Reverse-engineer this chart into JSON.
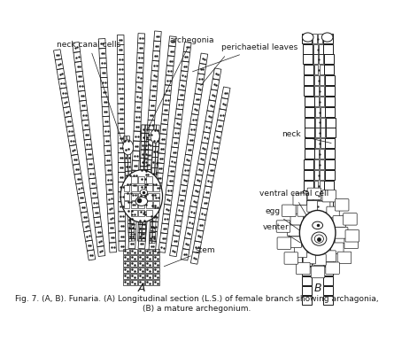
{
  "fig_caption_line1": "Fig. 7. (A, B). Funaria. (A) Longitudinal section (L.S.) of female branch showing archagonia,",
  "fig_caption_line2": "(B) a mature archegonium.",
  "label_A": "A",
  "label_B": "B",
  "labels": {
    "neck_canal_cells": "neck canal cells",
    "archegonia": "archegonia",
    "perichaetial_leaves": "perichaetial leaves",
    "neck": "neck",
    "ventral_canal_cell": "ventral canal cell",
    "egg": "egg",
    "venter": "venter",
    "stem": "stem"
  },
  "bg_color": "#ffffff",
  "line_color": "#1a1a1a",
  "font_size_label": 6.5,
  "font_size_caption": 6.5,
  "font_size_AB": 9
}
